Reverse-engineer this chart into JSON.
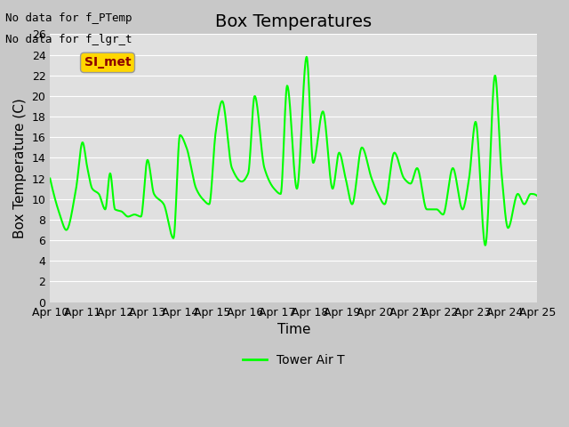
{
  "title": "Box Temperatures",
  "ylabel": "Box Temperature (C)",
  "xlabel": "Time",
  "no_data_text": [
    "No data for f_PTemp",
    "No data for f_lgr_t"
  ],
  "box_label": "SI_met",
  "box_label_color": "#8B0000",
  "box_bg_color": "#FFD700",
  "legend_label": "Tower Air T",
  "line_color": "#00FF00",
  "fig_bg_color": "#C8C8C8",
  "plot_bg_color": "#E0E0E0",
  "grid_color": "#FFFFFF",
  "ylim": [
    0,
    26
  ],
  "xlim": [
    0,
    15
  ],
  "yticks": [
    0,
    2,
    4,
    6,
    8,
    10,
    12,
    14,
    16,
    18,
    20,
    22,
    24,
    26
  ],
  "xtick_labels": [
    "Apr 10",
    "Apr 11",
    "Apr 12",
    "Apr 13",
    "Apr 14",
    "Apr 15",
    "Apr 16",
    "Apr 17",
    "Apr 18",
    "Apr 19",
    "Apr 20",
    "Apr 21",
    "Apr 22",
    "Apr 23",
    "Apr 24",
    "Apr 25"
  ],
  "key_x": [
    0,
    0.3,
    0.5,
    0.8,
    1.0,
    1.15,
    1.3,
    1.5,
    1.7,
    1.85,
    2.0,
    2.2,
    2.4,
    2.6,
    2.8,
    3.0,
    3.2,
    3.5,
    3.8,
    4.0,
    4.2,
    4.5,
    4.7,
    4.9,
    5.1,
    5.3,
    5.6,
    5.9,
    6.1,
    6.3,
    6.6,
    6.9,
    7.1,
    7.3,
    7.6,
    7.9,
    8.1,
    8.4,
    8.7,
    8.9,
    9.1,
    9.3,
    9.6,
    9.9,
    10.1,
    10.3,
    10.6,
    10.9,
    11.1,
    11.3,
    11.6,
    11.9,
    12.1,
    12.4,
    12.7,
    12.9,
    13.1,
    13.4,
    13.7,
    13.9,
    14.1,
    14.4,
    14.6,
    14.8,
    15.0
  ],
  "key_y": [
    12,
    8.5,
    7.0,
    11.0,
    15.5,
    13.0,
    11.0,
    10.5,
    9.0,
    12.5,
    9.0,
    8.8,
    8.3,
    8.5,
    8.3,
    13.8,
    10.5,
    9.5,
    6.2,
    16.2,
    15.0,
    11.0,
    10.0,
    9.5,
    16.5,
    19.5,
    13.0,
    11.7,
    12.5,
    20.0,
    13.0,
    11.0,
    10.5,
    21.0,
    11.0,
    23.8,
    13.5,
    18.5,
    11.0,
    14.5,
    12.0,
    9.5,
    15.0,
    12.0,
    10.5,
    9.5,
    14.5,
    12.0,
    11.5,
    13.0,
    9.0,
    9.0,
    8.5,
    13.0,
    9.0,
    12.0,
    17.5,
    5.5,
    22.0,
    12.5,
    7.2,
    10.5,
    9.5,
    10.5,
    10.3
  ],
  "title_fontsize": 14,
  "axis_label_fontsize": 11,
  "tick_fontsize": 9,
  "line_width": 1.5
}
